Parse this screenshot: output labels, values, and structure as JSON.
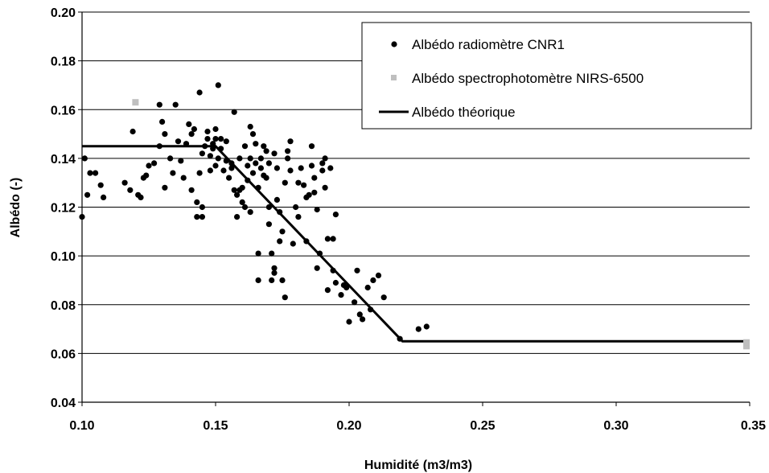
{
  "chart_data": {
    "type": "scatter",
    "xlabel": "Humidité (m3/m3)",
    "ylabel": "Albédo (-)",
    "xlim": [
      0.1,
      0.35
    ],
    "ylim": [
      0.04,
      0.2
    ],
    "xticks": [
      "0.10",
      "0.15",
      "0.20",
      "0.25",
      "0.30",
      "0.35"
    ],
    "yticks": [
      "0.04",
      "0.06",
      "0.08",
      "0.10",
      "0.12",
      "0.14",
      "0.16",
      "0.18",
      "0.20"
    ],
    "legend_position": "top-right",
    "series": [
      {
        "name": "Albédo radiomètre CNR1",
        "marker": "circle",
        "color": "#000000",
        "points": [
          [
            0.1,
            0.116
          ],
          [
            0.101,
            0.14
          ],
          [
            0.102,
            0.125
          ],
          [
            0.103,
            0.134
          ],
          [
            0.105,
            0.134
          ],
          [
            0.107,
            0.129
          ],
          [
            0.108,
            0.124
          ],
          [
            0.116,
            0.13
          ],
          [
            0.118,
            0.127
          ],
          [
            0.119,
            0.151
          ],
          [
            0.12,
            0.163
          ],
          [
            0.121,
            0.125
          ],
          [
            0.122,
            0.124
          ],
          [
            0.123,
            0.132
          ],
          [
            0.124,
            0.133
          ],
          [
            0.125,
            0.137
          ],
          [
            0.127,
            0.138
          ],
          [
            0.129,
            0.145
          ],
          [
            0.129,
            0.162
          ],
          [
            0.13,
            0.155
          ],
          [
            0.131,
            0.15
          ],
          [
            0.131,
            0.128
          ],
          [
            0.133,
            0.14
          ],
          [
            0.134,
            0.134
          ],
          [
            0.135,
            0.162
          ],
          [
            0.136,
            0.147
          ],
          [
            0.137,
            0.139
          ],
          [
            0.138,
            0.132
          ],
          [
            0.139,
            0.146
          ],
          [
            0.14,
            0.154
          ],
          [
            0.141,
            0.127
          ],
          [
            0.141,
            0.15
          ],
          [
            0.142,
            0.152
          ],
          [
            0.143,
            0.122
          ],
          [
            0.143,
            0.116
          ],
          [
            0.144,
            0.134
          ],
          [
            0.144,
            0.167
          ],
          [
            0.145,
            0.142
          ],
          [
            0.145,
            0.12
          ],
          [
            0.145,
            0.116
          ],
          [
            0.146,
            0.145
          ],
          [
            0.147,
            0.151
          ],
          [
            0.147,
            0.148
          ],
          [
            0.148,
            0.135
          ],
          [
            0.148,
            0.141
          ],
          [
            0.149,
            0.146
          ],
          [
            0.149,
            0.144
          ],
          [
            0.15,
            0.137
          ],
          [
            0.15,
            0.148
          ],
          [
            0.15,
            0.152
          ],
          [
            0.151,
            0.17
          ],
          [
            0.151,
            0.14
          ],
          [
            0.152,
            0.144
          ],
          [
            0.152,
            0.148
          ],
          [
            0.153,
            0.135
          ],
          [
            0.154,
            0.147
          ],
          [
            0.154,
            0.139
          ],
          [
            0.155,
            0.132
          ],
          [
            0.156,
            0.138
          ],
          [
            0.156,
            0.136
          ],
          [
            0.157,
            0.127
          ],
          [
            0.157,
            0.159
          ],
          [
            0.158,
            0.125
          ],
          [
            0.158,
            0.116
          ],
          [
            0.159,
            0.127
          ],
          [
            0.159,
            0.14
          ],
          [
            0.16,
            0.128
          ],
          [
            0.16,
            0.122
          ],
          [
            0.161,
            0.12
          ],
          [
            0.161,
            0.145
          ],
          [
            0.162,
            0.137
          ],
          [
            0.162,
            0.131
          ],
          [
            0.163,
            0.153
          ],
          [
            0.163,
            0.118
          ],
          [
            0.163,
            0.14
          ],
          [
            0.164,
            0.15
          ],
          [
            0.164,
            0.134
          ],
          [
            0.165,
            0.138
          ],
          [
            0.165,
            0.146
          ],
          [
            0.166,
            0.128
          ],
          [
            0.166,
            0.101
          ],
          [
            0.166,
            0.09
          ],
          [
            0.167,
            0.136
          ],
          [
            0.167,
            0.14
          ],
          [
            0.168,
            0.133
          ],
          [
            0.168,
            0.145
          ],
          [
            0.169,
            0.143
          ],
          [
            0.169,
            0.132
          ],
          [
            0.17,
            0.138
          ],
          [
            0.17,
            0.12
          ],
          [
            0.17,
            0.113
          ],
          [
            0.171,
            0.101
          ],
          [
            0.171,
            0.09
          ],
          [
            0.172,
            0.095
          ],
          [
            0.172,
            0.093
          ],
          [
            0.172,
            0.142
          ],
          [
            0.173,
            0.136
          ],
          [
            0.173,
            0.123
          ],
          [
            0.174,
            0.118
          ],
          [
            0.174,
            0.106
          ],
          [
            0.175,
            0.11
          ],
          [
            0.175,
            0.09
          ],
          [
            0.176,
            0.083
          ],
          [
            0.176,
            0.13
          ],
          [
            0.177,
            0.14
          ],
          [
            0.177,
            0.143
          ],
          [
            0.178,
            0.147
          ],
          [
            0.178,
            0.135
          ],
          [
            0.179,
            0.105
          ],
          [
            0.18,
            0.12
          ],
          [
            0.181,
            0.116
          ],
          [
            0.181,
            0.13
          ],
          [
            0.182,
            0.136
          ],
          [
            0.183,
            0.129
          ],
          [
            0.184,
            0.124
          ],
          [
            0.184,
            0.106
          ],
          [
            0.185,
            0.125
          ],
          [
            0.186,
            0.145
          ],
          [
            0.186,
            0.137
          ],
          [
            0.187,
            0.132
          ],
          [
            0.187,
            0.126
          ],
          [
            0.188,
            0.119
          ],
          [
            0.188,
            0.095
          ],
          [
            0.189,
            0.101
          ],
          [
            0.19,
            0.138
          ],
          [
            0.19,
            0.135
          ],
          [
            0.191,
            0.14
          ],
          [
            0.191,
            0.128
          ],
          [
            0.192,
            0.107
          ],
          [
            0.192,
            0.086
          ],
          [
            0.193,
            0.136
          ],
          [
            0.194,
            0.107
          ],
          [
            0.194,
            0.094
          ],
          [
            0.195,
            0.117
          ],
          [
            0.195,
            0.089
          ],
          [
            0.197,
            0.084
          ],
          [
            0.198,
            0.088
          ],
          [
            0.199,
            0.087
          ],
          [
            0.2,
            0.073
          ],
          [
            0.202,
            0.081
          ],
          [
            0.203,
            0.094
          ],
          [
            0.204,
            0.076
          ],
          [
            0.205,
            0.074
          ],
          [
            0.207,
            0.087
          ],
          [
            0.208,
            0.078
          ],
          [
            0.209,
            0.09
          ],
          [
            0.211,
            0.092
          ],
          [
            0.213,
            0.083
          ],
          [
            0.219,
            0.066
          ],
          [
            0.226,
            0.07
          ],
          [
            0.229,
            0.071
          ]
        ]
      },
      {
        "name": "Albédo spectrophotomètre NIRS-6500",
        "marker": "square",
        "color": "#bfbfbf",
        "points": [
          [
            0.12,
            0.163
          ],
          [
            0.35,
            0.063
          ],
          [
            0.35,
            0.0645
          ]
        ]
      },
      {
        "name": "Albédo théorique",
        "marker": "line",
        "color": "#000000",
        "points": [
          [
            0.1,
            0.145
          ],
          [
            0.15,
            0.145
          ],
          [
            0.22,
            0.065
          ],
          [
            0.35,
            0.065
          ]
        ]
      }
    ]
  }
}
